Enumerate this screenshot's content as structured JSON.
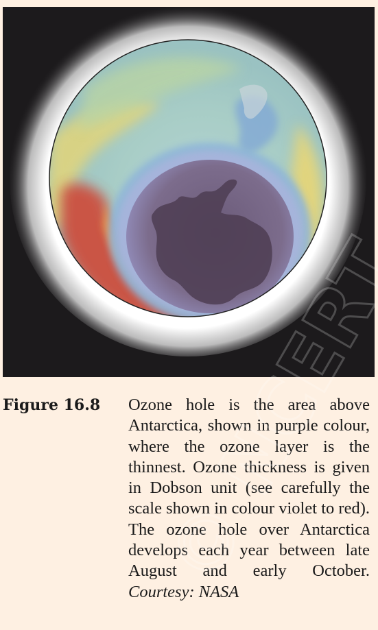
{
  "figure": {
    "image_subject": "ozone-hole-over-antarctica",
    "colors": {
      "background": "#fef0e2",
      "frame": "#1c1a1c",
      "ozone_hole_purple": "#6f5f7a",
      "antarctica": "#4b3a4e",
      "low_blue": "#8fb6d8",
      "mid_green": "#a6c8a0",
      "high_yellow": "#e8d676",
      "peak_red": "#cf4a38"
    }
  },
  "caption": {
    "label": "Figure 16.8",
    "text": "Ozone hole is the area above Antarctica, shown in purple colour, where the ozone layer is the thinnest. Ozone thickness is given in Dobson unit (see carefully the scale shown in colour violet to red). The ozone hole over Antarctica develops each year between late August and early October.",
    "credit": "Courtesy: NASA"
  },
  "watermark": {
    "text": "© NCERT"
  }
}
